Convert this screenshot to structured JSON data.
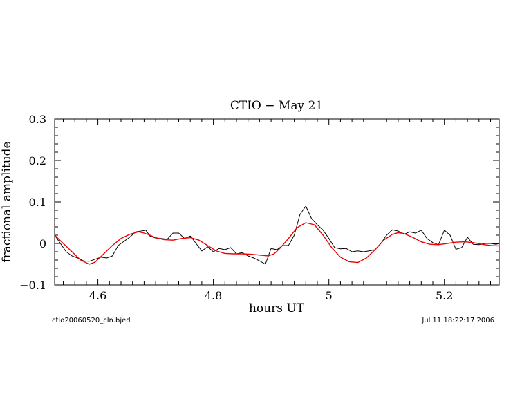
{
  "chart_data": {
    "type": "line",
    "title": "CTIO − May 21",
    "xlabel": "hours UT",
    "ylabel": "fractional amplitude",
    "xlim": [
      4.525,
      5.295
    ],
    "ylim": [
      -0.1,
      0.3
    ],
    "x_ticks": [
      4.6,
      4.8,
      5,
      5.2
    ],
    "x_tick_labels": [
      "4.6",
      "4.8",
      "5",
      "5.2"
    ],
    "y_ticks": [
      -0.1,
      0,
      0.1,
      0.2,
      0.3
    ],
    "y_tick_labels": [
      "−0.1",
      "0",
      "0.1",
      "0.2",
      "0.3"
    ],
    "grid": false,
    "footer_left": "ctio20060520_cln.bjed",
    "footer_right": "Jul 11 18:22:17 2006",
    "series": [
      {
        "color": "#000000",
        "x": [
          4.525,
          4.535,
          4.545,
          4.555,
          4.565,
          4.575,
          4.585,
          4.595,
          4.605,
          4.615,
          4.625,
          4.635,
          4.645,
          4.655,
          4.665,
          4.675,
          4.683,
          4.69,
          4.7,
          4.71,
          4.72,
          4.73,
          4.74,
          4.75,
          4.76,
          4.77,
          4.78,
          4.79,
          4.8,
          4.81,
          4.82,
          4.83,
          4.84,
          4.85,
          4.86,
          4.87,
          4.88,
          4.89,
          4.9,
          4.91,
          4.92,
          4.93,
          4.94,
          4.95,
          4.96,
          4.97,
          4.98,
          4.99,
          5.0,
          5.01,
          5.02,
          5.03,
          5.04,
          5.05,
          5.06,
          5.07,
          5.08,
          5.09,
          5.1,
          5.11,
          5.12,
          5.13,
          5.14,
          5.15,
          5.16,
          5.17,
          5.18,
          5.19,
          5.2,
          5.21,
          5.22,
          5.23,
          5.24,
          5.25,
          5.26,
          5.27,
          5.28,
          5.29,
          5.295
        ],
        "y": [
          0.02,
          0.0,
          -0.02,
          -0.03,
          -0.035,
          -0.042,
          -0.043,
          -0.038,
          -0.033,
          -0.035,
          -0.03,
          -0.005,
          0.005,
          0.015,
          0.028,
          0.03,
          0.032,
          0.018,
          0.013,
          0.012,
          0.01,
          0.025,
          0.025,
          0.012,
          0.018,
          0.0,
          -0.018,
          -0.008,
          -0.02,
          -0.012,
          -0.015,
          -0.01,
          -0.025,
          -0.022,
          -0.03,
          -0.035,
          -0.042,
          -0.05,
          -0.012,
          -0.015,
          -0.005,
          -0.005,
          0.02,
          0.07,
          0.09,
          0.06,
          0.045,
          0.032,
          0.012,
          -0.01,
          -0.013,
          -0.012,
          -0.02,
          -0.018,
          -0.02,
          -0.018,
          -0.015,
          0.0,
          0.02,
          0.033,
          0.03,
          0.022,
          0.028,
          0.025,
          0.032,
          0.012,
          0.002,
          -0.003,
          0.032,
          0.02,
          -0.014,
          -0.01,
          0.015,
          -0.002,
          -0.003,
          0.0,
          0.0,
          -0.002,
          0.0
        ]
      },
      {
        "color": "#ee0000",
        "x": [
          4.525,
          4.54,
          4.555,
          4.57,
          4.585,
          4.595,
          4.61,
          4.625,
          4.64,
          4.655,
          4.67,
          4.68,
          4.69,
          4.7,
          4.715,
          4.73,
          4.745,
          4.76,
          4.775,
          4.79,
          4.805,
          4.82,
          4.835,
          4.85,
          4.865,
          4.88,
          4.895,
          4.905,
          4.915,
          4.93,
          4.945,
          4.96,
          4.975,
          4.99,
          5.005,
          5.02,
          5.035,
          5.05,
          5.065,
          5.08,
          5.095,
          5.11,
          5.12,
          5.13,
          5.145,
          5.16,
          5.175,
          5.19,
          5.205,
          5.22,
          5.235,
          5.25,
          5.265,
          5.28,
          5.295
        ],
        "y": [
          0.02,
          0.0,
          -0.02,
          -0.04,
          -0.05,
          -0.045,
          -0.025,
          -0.005,
          0.012,
          0.022,
          0.028,
          0.025,
          0.02,
          0.014,
          0.009,
          0.008,
          0.012,
          0.014,
          0.008,
          -0.005,
          -0.018,
          -0.024,
          -0.025,
          -0.025,
          -0.026,
          -0.028,
          -0.03,
          -0.025,
          -0.012,
          0.012,
          0.038,
          0.05,
          0.045,
          0.02,
          -0.01,
          -0.033,
          -0.044,
          -0.046,
          -0.035,
          -0.015,
          0.008,
          0.022,
          0.026,
          0.024,
          0.015,
          0.004,
          -0.002,
          -0.003,
          0.0,
          0.003,
          0.004,
          0.002,
          -0.002,
          -0.005,
          -0.006
        ]
      }
    ]
  }
}
